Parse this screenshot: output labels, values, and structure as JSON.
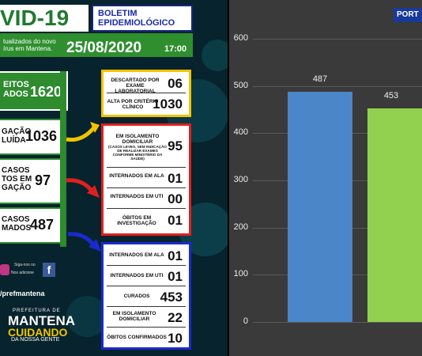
{
  "header": {
    "covid": "VID-19",
    "boletim1": "BOLETIM",
    "boletim2": "EPIDEMIOLÓGICO",
    "atualizados1": "tualizados do novo",
    "atualizados2": "írus em Mantena.",
    "date": "25/08/2020",
    "hour": "17:00"
  },
  "left_boxes": {
    "suspeitos_label1": "EITOS",
    "suspeitos_label2": "ADOS",
    "suspeitos_value": "1620",
    "concluida_label1": "GAÇÃO",
    "concluida_label2": "LUÍDA",
    "concluida_value": "1036",
    "investig_label1": "CASOS",
    "investig_label2": "TOS EM",
    "investig_label3": "GAÇÃO",
    "investig_value": "97",
    "confirm_label1": "CASOS",
    "confirm_label2": "MADOS",
    "confirm_value": "487"
  },
  "panel_top": {
    "r1_label": "DESCARTADO POR EXAME LABORATORIAL",
    "r1_value": "06",
    "r2_label": "ALTA POR CRITÉRIO CLÍNICO",
    "r2_value": "1030"
  },
  "panel_mid": {
    "r1_label": "EM ISOLAMENTO DOMICILIAR",
    "r1_sub": "(CASOS LEVES, SEM INDICAÇÃO DE REALIZAR EXAMES CONFORME MINISTÉRIO DA SAÚDE)",
    "r1_value": "95",
    "r2_label": "INTERNADOS EM ALA",
    "r2_value": "01",
    "r3_label": "INTERNADOS EM UTI",
    "r3_value": "00",
    "r4_label": "ÓBITOS EM INVESTIGAÇÃO",
    "r4_value": "01"
  },
  "panel_bot": {
    "r1_label": "INTERNADOS EM ALA",
    "r1_value": "01",
    "r2_label": "INTERNADOS EM UTI",
    "r2_value": "01",
    "r3_label": "CURADOS",
    "r3_value": "453",
    "r4_label": "EM ISOLAMENTO DOMICILIAR",
    "r4_value": "22",
    "r5_label": "ÓBITOS CONFIRMADOS",
    "r5_value": "10"
  },
  "social": {
    "follow1": "Siga-nos no",
    "follow2": "Nos adicione",
    "handle": "/prefmantena"
  },
  "logo": {
    "prefeitura": "PREFEITURA DE",
    "mantena": "MANTENA",
    "cuidando": "CUIDANDO",
    "gente": "DA NOSSA GENTE"
  },
  "portal_label": "PORT",
  "colors": {
    "bar_blue": "#4a86c8",
    "bar_green": "#92d050",
    "box_green": "#2e8b2e",
    "red": "#e02020",
    "blue": "#1a2ad0",
    "yellow": "#f2c400"
  },
  "chart_data": {
    "type": "bar",
    "ylim": [
      0,
      600
    ],
    "yticks": [
      "0",
      "100",
      "200",
      "300",
      "400",
      "500",
      "600"
    ],
    "values": [
      487,
      453
    ],
    "labels": [
      "487",
      "453"
    ]
  }
}
